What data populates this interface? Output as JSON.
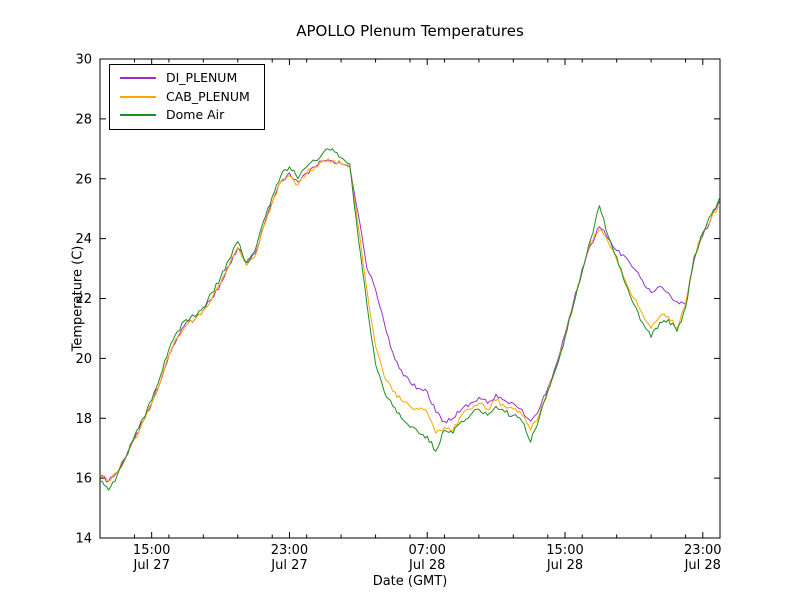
{
  "chart_data": {
    "type": "line",
    "title": "APOLLO Plenum Temperatures",
    "xlabel": "Date (GMT)",
    "ylabel": "Temperature (C)",
    "ylim": [
      14,
      30
    ],
    "y_ticks": [
      14,
      16,
      18,
      20,
      22,
      24,
      26,
      28,
      30
    ],
    "grid": false,
    "legend_position": "upper-left",
    "x_axis_span_hours": [
      0,
      36
    ],
    "x_hours": {
      "start": 0,
      "step": 0.5,
      "count": 73
    },
    "x_major_ticks": [
      {
        "hour": 3,
        "time": "15:00",
        "date": "Jul 27"
      },
      {
        "hour": 11,
        "time": "23:00",
        "date": "Jul 27"
      },
      {
        "hour": 19,
        "time": "07:00",
        "date": "Jul 28"
      },
      {
        "hour": 27,
        "time": "15:00",
        "date": "Jul 28"
      },
      {
        "hour": 35,
        "time": "23:00",
        "date": "Jul 28"
      }
    ],
    "x_minor_tick_every_hours": 2,
    "render_noise": {
      "amplitude": 0.09,
      "upsample": 4
    },
    "series": [
      {
        "name": "DI_PLENUM",
        "color": "#9932cc",
        "values": [
          16.1,
          15.9,
          16.2,
          16.7,
          17.3,
          17.9,
          18.5,
          19.2,
          20.1,
          20.7,
          21.2,
          21.3,
          21.6,
          22.0,
          22.5,
          23.1,
          23.7,
          23.2,
          23.5,
          24.4,
          25.2,
          25.9,
          26.2,
          25.9,
          26.2,
          26.4,
          26.6,
          26.6,
          26.5,
          26.4,
          24.8,
          23.0,
          22.3,
          21.2,
          20.2,
          19.6,
          19.2,
          19.0,
          18.9,
          18.2,
          17.9,
          18.0,
          18.3,
          18.5,
          18.7,
          18.5,
          18.8,
          18.6,
          18.5,
          18.3,
          17.9,
          18.3,
          19.0,
          19.8,
          20.8,
          21.9,
          23.0,
          23.8,
          24.4,
          24.0,
          23.6,
          23.4,
          23.0,
          22.6,
          22.2,
          22.4,
          22.2,
          21.9,
          21.8,
          23.3,
          24.1,
          24.7,
          25.3
        ]
      },
      {
        "name": "CAB_PLENUM",
        "color": "#ffa500",
        "values": [
          16.1,
          15.9,
          16.2,
          16.7,
          17.3,
          17.9,
          18.5,
          19.2,
          20.1,
          20.7,
          21.1,
          21.3,
          21.6,
          22.0,
          22.5,
          23.1,
          23.7,
          23.1,
          23.4,
          24.4,
          25.2,
          25.9,
          26.1,
          25.8,
          26.2,
          26.4,
          26.6,
          26.6,
          26.5,
          26.4,
          24.4,
          22.3,
          20.4,
          19.4,
          18.9,
          18.6,
          18.4,
          18.3,
          18.2,
          17.5,
          17.7,
          17.6,
          18.1,
          18.3,
          18.5,
          18.3,
          18.6,
          18.4,
          18.3,
          18.1,
          17.6,
          18.1,
          18.9,
          19.7,
          20.7,
          21.8,
          22.9,
          23.9,
          24.3,
          23.9,
          23.3,
          22.6,
          22.0,
          21.5,
          21.0,
          21.4,
          21.4,
          21.0,
          21.8,
          23.4,
          24.2,
          24.7,
          25.1
        ]
      },
      {
        "name": "Dome Air",
        "color": "#228b22",
        "values": [
          15.9,
          15.6,
          16.1,
          16.7,
          17.4,
          18.0,
          18.6,
          19.4,
          20.3,
          20.9,
          21.3,
          21.4,
          21.7,
          22.2,
          22.7,
          23.3,
          23.9,
          23.2,
          23.6,
          24.6,
          25.4,
          26.1,
          26.4,
          26.0,
          26.4,
          26.6,
          26.9,
          27.0,
          26.7,
          26.5,
          24.0,
          21.8,
          19.8,
          18.9,
          18.4,
          18.0,
          17.7,
          17.5,
          17.4,
          16.9,
          17.6,
          17.5,
          17.9,
          18.1,
          18.3,
          18.1,
          18.4,
          18.2,
          18.1,
          17.9,
          17.2,
          18.0,
          18.9,
          19.7,
          20.7,
          21.8,
          22.9,
          24.0,
          25.1,
          24.1,
          23.4,
          22.5,
          21.8,
          21.2,
          20.7,
          21.2,
          21.3,
          20.9,
          21.7,
          23.4,
          24.2,
          24.8,
          25.4
        ]
      }
    ]
  }
}
